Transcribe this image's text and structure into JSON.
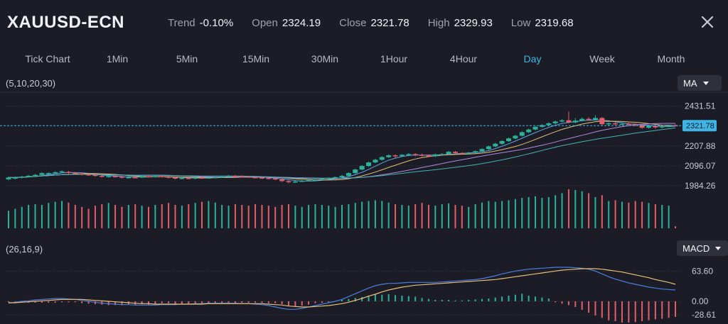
{
  "header": {
    "symbol": "XAUUSD-ECN",
    "trend_label": "Trend",
    "trend_value": "-0.10%",
    "open_label": "Open",
    "open_value": "2324.19",
    "close_label": "Close",
    "close_value": "2321.78",
    "high_label": "High",
    "high_value": "2329.93",
    "low_label": "Low",
    "low_value": "2319.68"
  },
  "tabs": [
    "Tick Chart",
    "1Min",
    "5Min",
    "15Min",
    "30Min",
    "1Hour",
    "4Hour",
    "Day",
    "Week",
    "Month"
  ],
  "active_tab": "Day",
  "main_indicator": {
    "params": "(5,10,20,30)",
    "button": "MA"
  },
  "macd_indicator": {
    "params": "(26,16,9)",
    "button": "MACD"
  },
  "colors": {
    "up": "#2bb39a",
    "down": "#e35d6a",
    "accent": "#3fb5e6",
    "ma5": "#5fa8e8",
    "ma10": "#e8c07a",
    "ma20": "#b389e0",
    "ma30": "#45b3b3",
    "dif": "#4a7fe0",
    "dea": "#e8c07a"
  },
  "chart_data": [
    {
      "type": "candlestick",
      "y_ticks": [
        "2431.51",
        "2207.88",
        "2096.07",
        "1984.26"
      ],
      "ylim": [
        1960,
        2510
      ],
      "current_price": "2321.78",
      "grid": true,
      "candles": [
        [
          2020,
          2030,
          2015,
          2035
        ],
        [
          2025,
          2030,
          2020,
          2035
        ],
        [
          2030,
          2035,
          2025,
          2040
        ],
        [
          2035,
          2040,
          2030,
          2045
        ],
        [
          2040,
          2045,
          2035,
          2050
        ],
        [
          2045,
          2055,
          2040,
          2060
        ],
        [
          2050,
          2055,
          2045,
          2060
        ],
        [
          2055,
          2060,
          2050,
          2065
        ],
        [
          2060,
          2065,
          2055,
          2070
        ],
        [
          2062,
          2058,
          2050,
          2068
        ],
        [
          2058,
          2052,
          2045,
          2062
        ],
        [
          2052,
          2048,
          2042,
          2058
        ],
        [
          2048,
          2045,
          2040,
          2052
        ],
        [
          2045,
          2040,
          2035,
          2050
        ],
        [
          2040,
          2035,
          2030,
          2045
        ],
        [
          2035,
          2038,
          2030,
          2042
        ],
        [
          2038,
          2035,
          2030,
          2042
        ],
        [
          2035,
          2030,
          2025,
          2040
        ],
        [
          2030,
          2032,
          2025,
          2038
        ],
        [
          2032,
          2030,
          2025,
          2036
        ],
        [
          2030,
          2038,
          2028,
          2042
        ],
        [
          2038,
          2035,
          2030,
          2042
        ],
        [
          2035,
          2038,
          2030,
          2042
        ],
        [
          2038,
          2035,
          2030,
          2042
        ],
        [
          2035,
          2030,
          2025,
          2040
        ],
        [
          2030,
          2025,
          2020,
          2035
        ],
        [
          2025,
          2028,
          2020,
          2032
        ],
        [
          2028,
          2025,
          2020,
          2032
        ],
        [
          2025,
          2030,
          2020,
          2035
        ],
        [
          2030,
          2028,
          2022,
          2034
        ],
        [
          2028,
          2030,
          2024,
          2034
        ],
        [
          2030,
          2032,
          2026,
          2036
        ],
        [
          2032,
          2035,
          2028,
          2040
        ],
        [
          2035,
          2040,
          2030,
          2045
        ],
        [
          2040,
          2038,
          2032,
          2044
        ],
        [
          2038,
          2035,
          2030,
          2042
        ],
        [
          2035,
          2032,
          2028,
          2040
        ],
        [
          2032,
          2030,
          2025,
          2036
        ],
        [
          2030,
          2028,
          2022,
          2034
        ],
        [
          2028,
          2025,
          2020,
          2032
        ],
        [
          2025,
          2020,
          2015,
          2030
        ],
        [
          2020,
          2010,
          2005,
          2025
        ],
        [
          2010,
          2005,
          1998,
          2015
        ],
        [
          2005,
          2008,
          2000,
          2012
        ],
        [
          2008,
          2012,
          2005,
          2016
        ],
        [
          2012,
          2015,
          2008,
          2020
        ],
        [
          2015,
          2018,
          2010,
          2022
        ],
        [
          2018,
          2022,
          2015,
          2026
        ],
        [
          2022,
          2028,
          2018,
          2032
        ],
        [
          2028,
          2032,
          2024,
          2036
        ],
        [
          2032,
          2040,
          2028,
          2045
        ],
        [
          2040,
          2055,
          2035,
          2060
        ],
        [
          2055,
          2075,
          2050,
          2080
        ],
        [
          2075,
          2095,
          2070,
          2100
        ],
        [
          2095,
          2115,
          2090,
          2120
        ],
        [
          2115,
          2130,
          2110,
          2135
        ],
        [
          2130,
          2145,
          2125,
          2150
        ],
        [
          2145,
          2155,
          2140,
          2160
        ],
        [
          2155,
          2150,
          2140,
          2160
        ],
        [
          2150,
          2158,
          2145,
          2162
        ],
        [
          2158,
          2162,
          2150,
          2168
        ],
        [
          2162,
          2158,
          2150,
          2168
        ],
        [
          2158,
          2155,
          2148,
          2165
        ],
        [
          2155,
          2150,
          2145,
          2160
        ],
        [
          2150,
          2160,
          2145,
          2165
        ],
        [
          2160,
          2162,
          2155,
          2168
        ],
        [
          2162,
          2175,
          2158,
          2180
        ],
        [
          2175,
          2168,
          2160,
          2180
        ],
        [
          2168,
          2165,
          2158,
          2172
        ],
        [
          2165,
          2170,
          2160,
          2175
        ],
        [
          2170,
          2178,
          2165,
          2182
        ],
        [
          2178,
          2190,
          2172,
          2195
        ],
        [
          2190,
          2205,
          2185,
          2210
        ],
        [
          2205,
          2220,
          2200,
          2225
        ],
        [
          2220,
          2235,
          2215,
          2240
        ],
        [
          2235,
          2250,
          2230,
          2255
        ],
        [
          2250,
          2265,
          2245,
          2270
        ],
        [
          2265,
          2285,
          2260,
          2290
        ],
        [
          2285,
          2300,
          2280,
          2305
        ],
        [
          2300,
          2315,
          2295,
          2320
        ],
        [
          2315,
          2325,
          2310,
          2330
        ],
        [
          2325,
          2335,
          2320,
          2340
        ],
        [
          2335,
          2345,
          2328,
          2350
        ],
        [
          2345,
          2352,
          2340,
          2358
        ],
        [
          2352,
          2340,
          2335,
          2400
        ],
        [
          2340,
          2350,
          2335,
          2365
        ],
        [
          2350,
          2360,
          2345,
          2368
        ],
        [
          2360,
          2355,
          2348,
          2370
        ],
        [
          2355,
          2365,
          2350,
          2380
        ],
        [
          2365,
          2330,
          2325,
          2370
        ],
        [
          2330,
          2335,
          2320,
          2340
        ],
        [
          2335,
          2330,
          2325,
          2340
        ],
        [
          2330,
          2332,
          2325,
          2338
        ],
        [
          2332,
          2330,
          2325,
          2338
        ],
        [
          2330,
          2325,
          2318,
          2335
        ],
        [
          2325,
          2310,
          2305,
          2330
        ],
        [
          2310,
          2320,
          2305,
          2325
        ],
        [
          2320,
          2312,
          2305,
          2325
        ],
        [
          2312,
          2318,
          2306,
          2322
        ],
        [
          2318,
          2322,
          2312,
          2328
        ],
        [
          2324.19,
          2321.78,
          2319.68,
          2329.93
        ]
      ],
      "volume": [
        0.45,
        0.5,
        0.55,
        0.6,
        0.62,
        0.6,
        0.65,
        0.68,
        0.7,
        0.66,
        0.6,
        0.55,
        0.5,
        0.58,
        0.62,
        0.65,
        0.6,
        0.55,
        0.6,
        0.62,
        0.58,
        0.55,
        0.6,
        0.62,
        0.65,
        0.6,
        0.58,
        0.62,
        0.65,
        0.68,
        0.7,
        0.66,
        0.6,
        0.58,
        0.62,
        0.6,
        0.58,
        0.62,
        0.6,
        0.58,
        0.55,
        0.6,
        0.62,
        0.58,
        0.55,
        0.6,
        0.62,
        0.6,
        0.58,
        0.55,
        0.6,
        0.62,
        0.65,
        0.68,
        0.7,
        0.72,
        0.7,
        0.66,
        0.62,
        0.6,
        0.58,
        0.62,
        0.65,
        0.6,
        0.58,
        0.62,
        0.64,
        0.6,
        0.58,
        0.55,
        0.62,
        0.66,
        0.7,
        0.68,
        0.7,
        0.72,
        0.75,
        0.78,
        0.8,
        0.82,
        0.78,
        0.8,
        0.85,
        0.9,
        1.0,
        0.98,
        0.95,
        0.9,
        0.8,
        0.85,
        0.7,
        0.72,
        0.68,
        0.66,
        0.7,
        0.68,
        0.65,
        0.62,
        0.6,
        0.58,
        0.05
      ]
    },
    {
      "type": "macd",
      "y_ticks": [
        "63.60",
        "0.00",
        "-28.61"
      ],
      "ylim": [
        -45,
        90
      ],
      "dif": [
        -4,
        -2,
        0,
        1,
        3,
        4,
        5,
        6,
        6,
        5,
        4,
        2,
        0,
        -2,
        -4,
        -5,
        -6,
        -7,
        -7,
        -8,
        -8,
        -8,
        -8,
        -7,
        -7,
        -7,
        -6,
        -6,
        -5,
        -5,
        -4,
        -4,
        -4,
        -4,
        -4,
        -5,
        -5,
        -6,
        -7,
        -9,
        -12,
        -15,
        -17,
        -17,
        -15,
        -12,
        -9,
        -6,
        -3,
        0,
        4,
        10,
        16,
        22,
        28,
        33,
        36,
        38,
        38,
        39,
        40,
        40,
        40,
        40,
        40,
        41,
        42,
        43,
        44,
        45,
        46,
        48,
        51,
        54,
        58,
        61,
        64,
        66,
        68,
        69,
        70,
        71,
        72,
        72,
        72,
        71,
        70,
        68,
        64,
        58,
        52,
        47,
        43,
        39,
        36,
        33,
        30,
        28,
        26,
        25,
        24
      ],
      "dea": [
        -3,
        -3,
        -2,
        -1,
        0,
        1,
        2,
        3,
        4,
        4,
        4,
        4,
        3,
        2,
        1,
        0,
        -1,
        -2,
        -3,
        -4,
        -5,
        -5,
        -6,
        -6,
        -6,
        -6,
        -6,
        -6,
        -6,
        -6,
        -5,
        -5,
        -5,
        -5,
        -5,
        -5,
        -5,
        -5,
        -5,
        -6,
        -7,
        -8,
        -10,
        -11,
        -12,
        -12,
        -11,
        -10,
        -9,
        -7,
        -5,
        -2,
        2,
        6,
        11,
        15,
        20,
        24,
        27,
        30,
        32,
        34,
        35,
        36,
        37,
        38,
        39,
        40,
        41,
        42,
        43,
        44,
        45,
        46,
        48,
        50,
        52,
        54,
        56,
        58,
        60,
        62,
        64,
        66,
        67,
        68,
        69,
        69,
        69,
        68,
        66,
        64,
        62,
        59,
        56,
        53,
        50,
        46,
        43,
        40,
        36
      ],
      "hist": [
        -2,
        -1,
        -2,
        -3,
        -3,
        -3,
        -3,
        -3,
        -2,
        -2,
        -2,
        -4,
        -5,
        -6,
        -7,
        -8,
        -8,
        -8,
        -6,
        -7,
        -6,
        -7,
        -5,
        -4,
        -4,
        -6,
        -5,
        -5,
        -6,
        -4,
        -4,
        -3,
        -3,
        -3,
        -4,
        -3,
        -3,
        -3,
        -3,
        -4,
        -4,
        -6,
        -9,
        -11,
        -9,
        -7,
        -4,
        -3,
        -2,
        1,
        3,
        5,
        7,
        9,
        12,
        14,
        14,
        15,
        13,
        12,
        11,
        10,
        7,
        5,
        3,
        3,
        3,
        2,
        2,
        3,
        4,
        5,
        6,
        8,
        10,
        12,
        14,
        16,
        12,
        10,
        8,
        6,
        -2,
        -5,
        -8,
        -12,
        -18,
        -24,
        -30,
        -35,
        -40,
        -42,
        -45,
        -45,
        -44,
        -42,
        -40,
        -38,
        -37,
        -35,
        -33
      ]
    }
  ]
}
